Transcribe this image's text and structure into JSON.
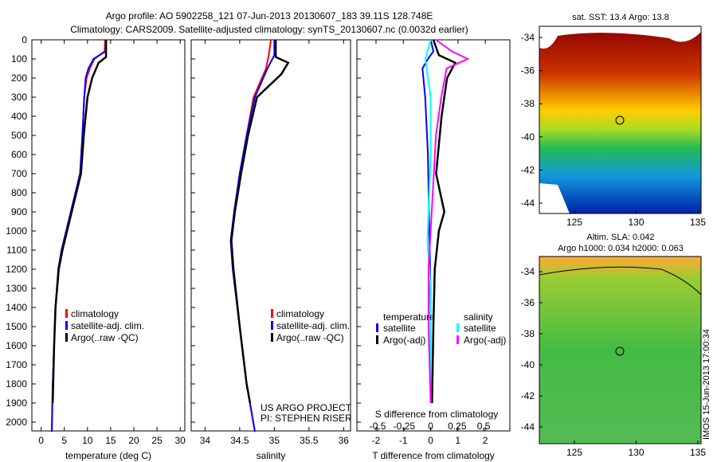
{
  "title_line1": "Argo profile: AO 5902258_121 07-Jun-2013 20130607_183 39.11S 128.748E",
  "title_line2": "Climatology: CARS2009. Satellite-adjusted climatology: synTS_20130607.nc (0.0032d earlier)",
  "credit": "IMOS 15-Jun-2013 17:00:34",
  "colors": {
    "climatology": "#ff0000",
    "satellite": "#0000ff",
    "argo": "#000000",
    "sal_satellite": "#00ffff",
    "sal_argo": "#ff00ff"
  },
  "chart_data": [
    {
      "type": "line",
      "id": "temp",
      "xlabel": "temperature (deg C)",
      "xlim": [
        -2,
        31
      ],
      "ylim": [
        0,
        2080
      ],
      "xticks": [
        "0",
        "5",
        "10",
        "15",
        "20",
        "25",
        "30"
      ],
      "yticks": [
        "0",
        "100",
        "200",
        "300",
        "400",
        "500",
        "600",
        "700",
        "800",
        "900",
        "1000",
        "1100",
        "1200",
        "1300",
        "1400",
        "1500",
        "1600",
        "1700",
        "1800",
        "1900",
        "2000"
      ],
      "legend": [
        "climatology",
        "satellite-adj. clim.",
        "Argo(..raw -QC)"
      ],
      "series": [
        {
          "name": "climatology",
          "color": "#ff0000",
          "depth": [
            0,
            60,
            100,
            150,
            200,
            300,
            500,
            700,
            800,
            900,
            1000,
            1100,
            1200,
            1400,
            1600,
            1800,
            2050
          ],
          "values": [
            13.8,
            13.7,
            11.5,
            10.5,
            9.8,
            9.3,
            8.9,
            8.4,
            7.4,
            6.4,
            5.4,
            4.4,
            3.7,
            3.1,
            2.8,
            2.5,
            2.3
          ]
        },
        {
          "name": "satellite-adj. clim.",
          "color": "#0000ff",
          "depth": [
            0,
            60,
            100,
            150,
            200,
            300,
            500,
            700,
            800,
            900,
            1000,
            1100,
            1200,
            1400,
            1600,
            1800,
            2050
          ],
          "values": [
            14,
            13.9,
            11.3,
            10.2,
            9.6,
            9.3,
            8.9,
            8.4,
            7.4,
            6.4,
            5.4,
            4.4,
            3.7,
            3.1,
            2.8,
            2.5,
            2.3
          ]
        },
        {
          "name": "Argo(..raw -QC)",
          "color": "#000000",
          "depth": [
            0,
            90,
            120,
            200,
            300,
            500,
            700,
            800,
            900,
            1000,
            1100,
            1200,
            1400,
            1600,
            1800,
            1900
          ],
          "values": [
            14,
            14,
            12.4,
            11,
            10,
            9.2,
            8.6,
            7.6,
            6.6,
            5.6,
            4.6,
            3.8,
            3.1,
            2.8,
            2.6,
            2.5
          ]
        }
      ]
    },
    {
      "type": "line",
      "id": "sal",
      "xlabel": "salinity",
      "xlim": [
        33.8,
        36.1
      ],
      "ylim": [
        0,
        2080
      ],
      "xticks": [
        "34",
        "34.5",
        "35",
        "35.5",
        "36"
      ],
      "legend": [
        "climatology",
        "satellite-adj. clim.",
        "Argo(..raw -QC)"
      ],
      "annotation": [
        "US ARGO PROJECT",
        "PI: STEPHEN RISER"
      ],
      "series": [
        {
          "name": "climatology",
          "color": "#ff0000",
          "depth": [
            0,
            80,
            150,
            300,
            500,
            700,
            900,
            1050,
            1200,
            1500,
            1800,
            2050
          ],
          "values": [
            34.95,
            34.92,
            34.88,
            34.7,
            34.6,
            34.5,
            34.42,
            34.37,
            34.4,
            34.5,
            34.6,
            34.72
          ]
        },
        {
          "name": "satellite-adj. clim.",
          "color": "#0000ff",
          "depth": [
            0,
            80,
            150,
            300,
            500,
            700,
            900,
            1050,
            1200,
            1500,
            1800,
            2050
          ],
          "values": [
            35.0,
            35.0,
            34.9,
            34.72,
            34.6,
            34.5,
            34.42,
            34.37,
            34.4,
            34.5,
            34.6,
            34.72
          ]
        },
        {
          "name": "Argo(..raw -QC)",
          "color": "#000000",
          "depth": [
            0,
            90,
            120,
            180,
            300,
            500,
            700,
            900,
            1050,
            1200,
            1500,
            1800,
            1900
          ],
          "values": [
            35.02,
            35.02,
            35.2,
            35.1,
            34.75,
            34.62,
            34.52,
            34.43,
            34.38,
            34.41,
            34.5,
            34.6,
            34.65
          ]
        }
      ]
    },
    {
      "type": "line",
      "id": "diff",
      "xlabel": "T difference from climatology",
      "x2label": "S difference from climatology",
      "xlim": [
        -2.7,
        2.9
      ],
      "ylim": [
        0,
        2080
      ],
      "xticks": [
        "-2",
        "-1",
        "0",
        "1",
        "2"
      ],
      "x2ticks": [
        "-0.5",
        "-0.25",
        "0",
        "0.25",
        "0.5"
      ],
      "legend_headers": [
        "temperature",
        "salinity"
      ],
      "legend": [
        "satellite",
        "Argo(-adj)",
        "satellite",
        "Argo(-adj)"
      ],
      "series": [
        {
          "name": "T satellite",
          "color": "#0000ff",
          "depth": [
            0,
            60,
            100,
            150,
            300,
            600,
            1000,
            1200,
            1500,
            1900
          ],
          "values": [
            0,
            0.1,
            -0.1,
            -0.3,
            -0.2,
            -0.1,
            -0.05,
            -0.02,
            0,
            0
          ]
        },
        {
          "name": "T Argo(-adj)",
          "color": "#000000",
          "depth": [
            0,
            80,
            120,
            200,
            400,
            700,
            900,
            1000,
            1200,
            1500,
            1900
          ],
          "values": [
            0.1,
            0.3,
            0.9,
            0.6,
            0.4,
            0.2,
            0.5,
            0.3,
            0.15,
            0.1,
            0.05
          ]
        },
        {
          "name": "S satellite",
          "color": "#00ffff",
          "depth": [
            0,
            100,
            300,
            600,
            900,
            1050,
            1300,
            1900
          ],
          "values": [
            0,
            -0.05,
            0,
            0,
            -0.02,
            -0.03,
            0,
            0
          ]
        },
        {
          "name": "S Argo(-adj)",
          "color": "#ff00ff",
          "depth": [
            0,
            60,
            100,
            150,
            300,
            500,
            800,
            1200,
            1500,
            1900
          ],
          "values": [
            0.05,
            0.2,
            0.35,
            0.15,
            0.1,
            0.05,
            0.02,
            -0.02,
            -0.02,
            0
          ]
        }
      ]
    },
    {
      "type": "heatmap",
      "id": "sst",
      "title": "sat. SST: 13.4  Argo: 13.8",
      "xticks": [
        "125",
        "130",
        "135"
      ],
      "yticks": [
        "-34",
        "-36",
        "-38",
        "-40",
        "-42",
        "-44"
      ],
      "marker": [
        128.748,
        -39.11
      ]
    },
    {
      "type": "heatmap",
      "id": "sla",
      "title": "Altim. SLA: 0.042",
      "subtitle": "Argo h1000: 0.034 h2000: 0.063",
      "xticks": [
        "125",
        "130",
        "135"
      ],
      "yticks": [
        "-34",
        "-36",
        "-38",
        "-40",
        "-42",
        "-44"
      ],
      "marker": [
        128.748,
        -39.11
      ]
    }
  ]
}
